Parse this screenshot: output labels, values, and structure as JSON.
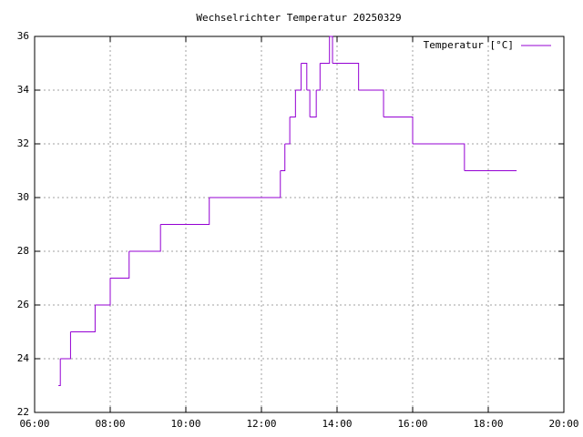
{
  "chart_data": {
    "type": "line",
    "title": "Wechselrichter Temperatur 20250329",
    "x": [
      6.63,
      6.68,
      6.95,
      7.6,
      8.0,
      8.5,
      9.33,
      10.62,
      12.5,
      12.62,
      12.75,
      12.9,
      13.05,
      13.2,
      13.28,
      13.45,
      13.55,
      13.8,
      13.88,
      14.57,
      15.23,
      16.0,
      17.37,
      18.75
    ],
    "series": [
      {
        "name": "Temperatur [°C]",
        "color": "#9400d3",
        "values": [
          23,
          24,
          25,
          26,
          27,
          28,
          29,
          30,
          31,
          32,
          33,
          34,
          35,
          34,
          33,
          34,
          35,
          36,
          35,
          34,
          33,
          32,
          31,
          31
        ]
      }
    ],
    "xlim": [
      6,
      20
    ],
    "xticks": [
      {
        "value": 6,
        "label": "06:00"
      },
      {
        "value": 8,
        "label": "08:00"
      },
      {
        "value": 10,
        "label": "10:00"
      },
      {
        "value": 12,
        "label": "12:00"
      },
      {
        "value": 14,
        "label": "14:00"
      },
      {
        "value": 16,
        "label": "16:00"
      },
      {
        "value": 18,
        "label": "18:00"
      },
      {
        "value": 20,
        "label": "20:00"
      }
    ],
    "ylim": [
      22,
      36
    ],
    "yticks": [
      22,
      24,
      26,
      28,
      30,
      32,
      34,
      36
    ],
    "grid": true,
    "legend": "top-right",
    "steps": true
  }
}
